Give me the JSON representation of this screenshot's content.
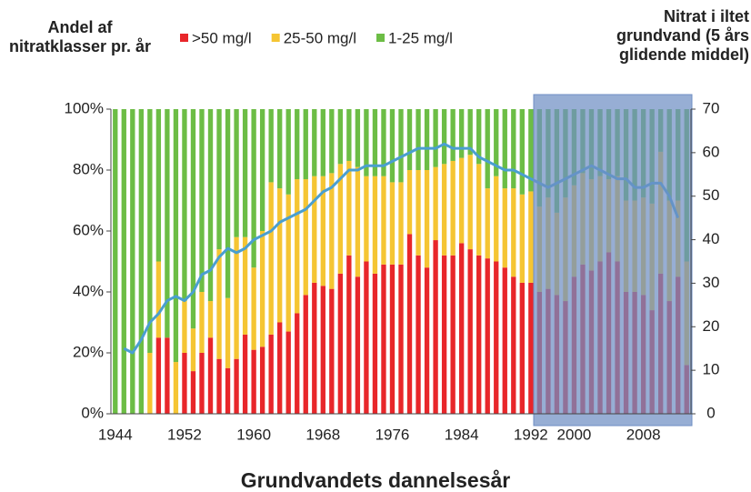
{
  "chart_data": {
    "type": "bar",
    "stacked": true,
    "y_title": "Andel af nitratklasser pr. år",
    "y2_title": "Nitrat i iltet grundvand (5 års glidende middel)",
    "x_title": "Grundvandets dannelsesår",
    "categories": [
      "1944",
      null,
      null,
      null,
      null,
      null,
      null,
      null,
      "1952",
      null,
      null,
      null,
      null,
      null,
      null,
      null,
      "1960",
      null,
      null,
      null,
      null,
      null,
      null,
      null,
      "1968",
      null,
      null,
      null,
      null,
      null,
      null,
      null,
      "1976",
      null,
      null,
      null,
      null,
      null,
      null,
      null,
      "1984",
      null,
      null,
      null,
      null,
      null,
      null,
      null,
      "1992",
      null,
      null,
      null,
      null,
      "2000",
      null,
      null,
      null,
      null,
      null,
      null,
      null,
      "2008",
      null,
      null,
      null,
      null,
      null
    ],
    "series": [
      {
        "name": ">50 mg/l",
        "color": "#e8262a",
        "values": [
          0,
          0,
          0,
          0,
          0,
          25,
          25,
          0,
          20,
          14,
          20,
          25,
          18,
          15,
          18,
          26,
          21,
          22,
          26,
          30,
          27,
          33,
          39,
          43,
          42,
          41,
          46,
          52,
          45,
          50,
          46,
          49,
          49,
          49,
          59,
          52,
          48,
          57,
          52,
          52,
          56,
          54,
          52,
          51,
          50,
          48,
          45,
          43,
          43,
          40,
          41,
          39,
          37,
          45,
          49,
          47,
          50,
          53,
          50,
          40,
          40,
          39,
          34,
          46,
          37,
          45,
          16
        ]
      },
      {
        "name": "25-50 mg/l",
        "color": "#f5c533",
        "values": [
          0,
          0,
          0,
          0,
          20,
          25,
          0,
          17,
          17,
          14,
          20,
          12,
          36,
          23,
          40,
          32,
          27,
          38,
          50,
          44,
          45,
          44,
          38,
          35,
          36,
          38,
          36,
          31,
          36,
          28,
          32,
          29,
          27,
          27,
          21,
          28,
          32,
          24,
          30,
          31,
          28,
          31,
          30,
          23,
          28,
          26,
          29,
          29,
          30,
          28,
          30,
          27,
          34,
          30,
          30,
          30,
          28,
          24,
          28,
          30,
          30,
          32,
          35,
          40,
          33,
          25,
          34
        ]
      },
      {
        "name": "1-25 mg/l",
        "color": "#6cbd45",
        "values": [
          100,
          100,
          100,
          100,
          80,
          50,
          75,
          83,
          63,
          72,
          60,
          63,
          46,
          62,
          42,
          42,
          52,
          40,
          24,
          26,
          28,
          23,
          23,
          22,
          22,
          21,
          18,
          17,
          19,
          22,
          22,
          22,
          24,
          24,
          20,
          20,
          20,
          19,
          18,
          17,
          16,
          15,
          18,
          26,
          22,
          26,
          26,
          28,
          27,
          32,
          29,
          34,
          29,
          25,
          21,
          23,
          22,
          23,
          22,
          30,
          30,
          29,
          31,
          14,
          30,
          30,
          50
        ]
      },
      {
        "type": "line",
        "axis": "y2",
        "color": "#4a9fd0",
        "values": [
          null,
          15,
          14,
          17,
          21,
          23,
          26,
          27,
          26,
          28,
          32,
          33,
          36,
          38,
          37,
          38,
          40,
          41,
          42,
          44,
          45,
          46,
          47,
          49,
          51,
          52,
          54,
          56,
          56,
          57,
          57,
          57,
          58,
          59,
          60,
          61,
          61,
          61,
          62,
          61,
          61,
          61,
          59,
          58,
          57,
          56,
          56,
          55,
          54,
          53,
          52,
          53,
          54,
          55,
          56,
          57,
          56,
          55,
          54,
          54,
          52,
          52,
          53,
          53,
          50,
          45,
          null
        ]
      }
    ],
    "ylim": [
      0,
      100
    ],
    "yticks": [
      {
        "value": 0,
        "label": "0%"
      },
      {
        "value": 20,
        "label": "20%"
      },
      {
        "value": 40,
        "label": "40%"
      },
      {
        "value": 60,
        "label": "60%"
      },
      {
        "value": 80,
        "label": "80%"
      },
      {
        "value": 100,
        "label": "100%"
      }
    ],
    "y2lim": [
      0,
      70
    ],
    "y2ticks": [
      0,
      10,
      20,
      30,
      40,
      50,
      60,
      70
    ],
    "legend": "top"
  }
}
